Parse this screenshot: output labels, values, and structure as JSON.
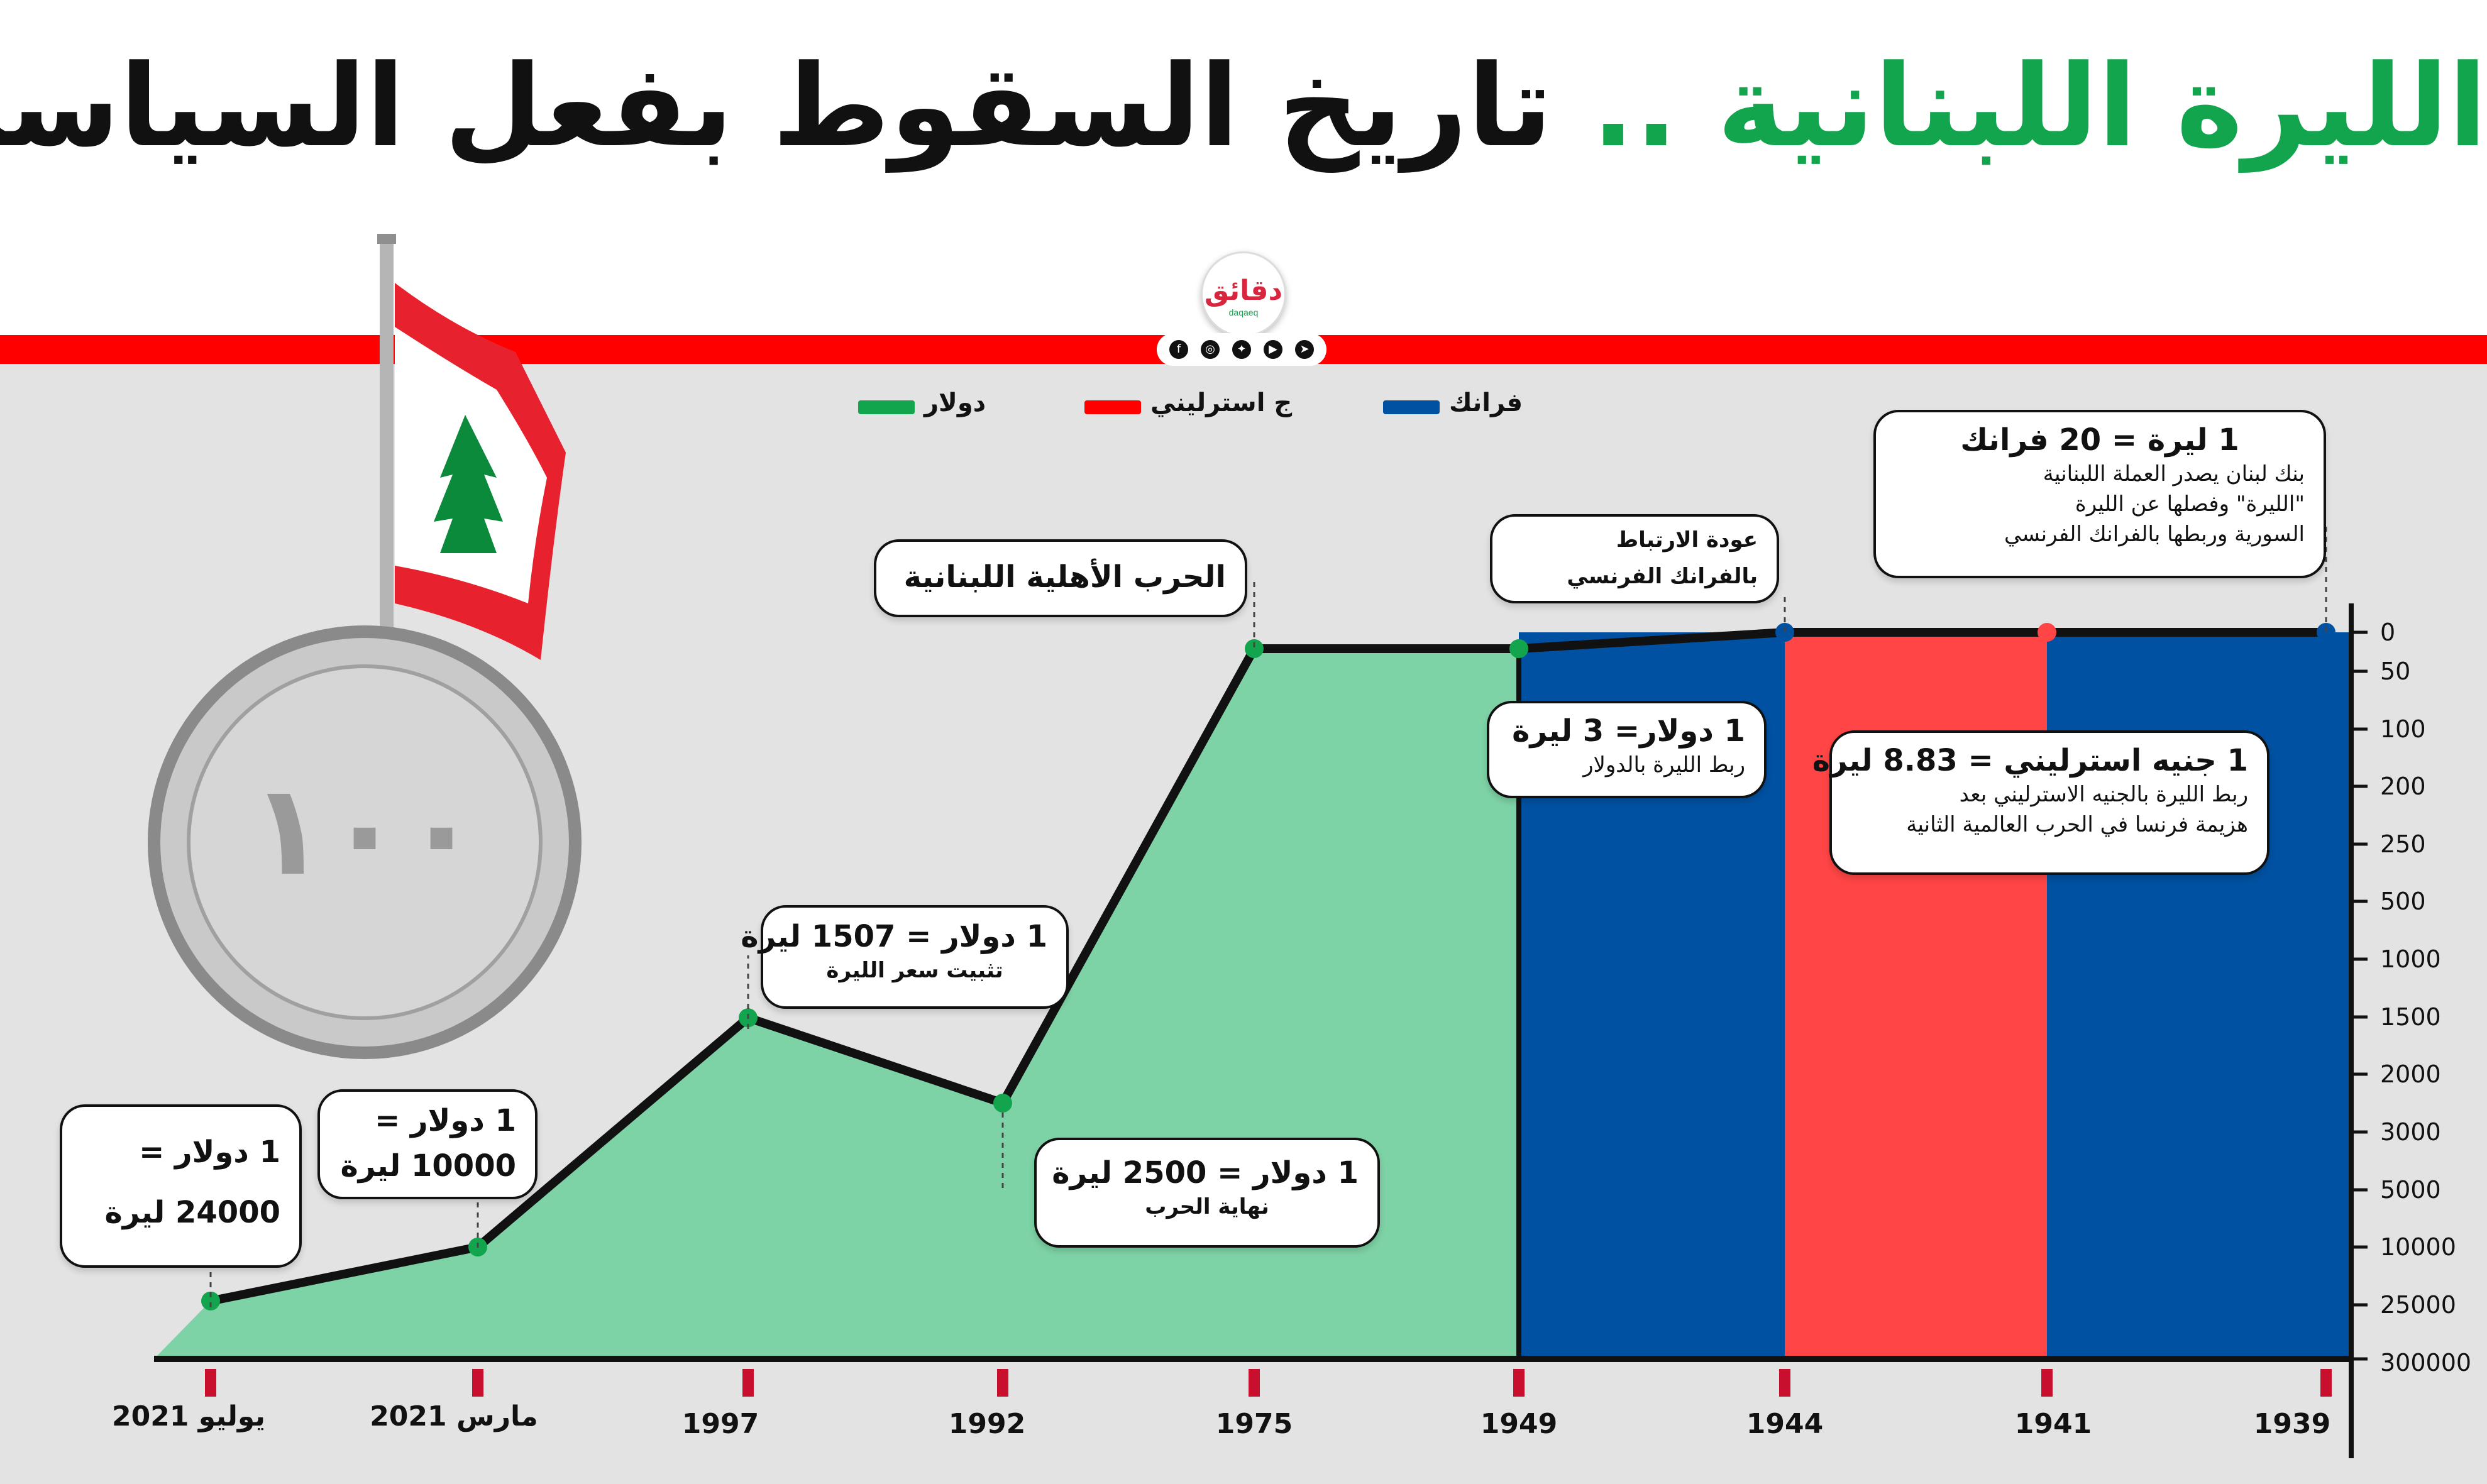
{
  "header": {
    "title_green": "الليرة اللبنانية ..",
    "title_black": "تاريخ السقوط بفعل السياسة",
    "logo_text": "دقائق",
    "logo_sub": "daqaeq"
  },
  "social_icons": [
    "facebook-icon",
    "instagram-icon",
    "twitter-icon",
    "youtube-icon",
    "telegram-icon"
  ],
  "colors": {
    "dollar": "#7ed3a6",
    "sterling": "#ff4545",
    "franc": "#0051a2",
    "title_green": "#12a54e",
    "band": "#ff0000",
    "tick_marker": "#c8102e",
    "line": "#111111"
  },
  "chart_data": {
    "type": "area",
    "legend": [
      {
        "name": "دولار",
        "color": "#12a54e"
      },
      {
        "name": "ج استرليني",
        "color": "#ff0000"
      },
      {
        "name": "فرانك",
        "color": "#0051a2"
      }
    ],
    "legend_position": "top",
    "x_direction": "right-to-left",
    "y_scale": "categorical (non-linear)",
    "x_labels": [
      "1939",
      "1941",
      "1944",
      "1949",
      "1975",
      "1992",
      "1997",
      "مارس 2021",
      "يوليو 2021"
    ],
    "y_ticks": [
      0,
      50,
      100,
      200,
      250,
      500,
      1000,
      1500,
      2000,
      3000,
      5000,
      10000,
      25000,
      300000
    ],
    "line": [
      {
        "x": "1939",
        "y": 0
      },
      {
        "x": "1941",
        "y": 0
      },
      {
        "x": "1944",
        "y": 0
      },
      {
        "x": "1949",
        "y": 3
      },
      {
        "x": "1975",
        "y": 3
      },
      {
        "x": "1992",
        "y": 2500
      },
      {
        "x": "1997",
        "y": 1507
      },
      {
        "x": "مارس 2021",
        "y": 10000
      },
      {
        "x": "يوليو 2021",
        "y": 24000
      }
    ],
    "bands": [
      {
        "from": "1939",
        "to": "1941",
        "currency": "فرانك"
      },
      {
        "from": "1941",
        "to": "1944",
        "currency": "ج استرليني"
      },
      {
        "from": "1944",
        "to": "1949",
        "currency": "فرانك"
      },
      {
        "from": "1949",
        "to": "يوليو 2021",
        "currency": "دولار"
      }
    ],
    "annotations": [
      {
        "at": "1939",
        "lines": [
          "1 ليرة = 20 فرانك",
          "بنك لبنان يصدر العملة اللبنانية",
          "\"الليرة\" وفصلها عن الليرة",
          "السورية وربطها بالفرانك الفرنسي"
        ]
      },
      {
        "at": "1941",
        "lines": [
          "1 جنيه استرليني = 8.83 ليرة",
          "ربط الليرة بالجنيه الاسترليني بعد",
          "هزيمة فرنسا في الحرب العالمية الثانية"
        ]
      },
      {
        "at": "1944",
        "lines": [
          "عودة الارتباط",
          "بالفرانك الفرنسي"
        ]
      },
      {
        "at": "1949",
        "lines": [
          "1 دولار= 3 ليرة",
          "ربط الليرة بالدولار"
        ]
      },
      {
        "at": "1975",
        "lines": [
          "الحرب الأهلية اللبنانية"
        ]
      },
      {
        "at": "1992",
        "lines": [
          "1 دولار = 2500 ليرة",
          "نهاية الحرب"
        ]
      },
      {
        "at": "1997",
        "lines": [
          "1 دولار = 1507 ليرة",
          "تثبيت سعر الليرة"
        ]
      },
      {
        "at": "مارس 2021",
        "lines": [
          "1 دولار =",
          "10000 ليرة"
        ]
      },
      {
        "at": "يوليو 2021",
        "lines": [
          "1 دولار =",
          "24000 ليرة"
        ]
      }
    ]
  }
}
